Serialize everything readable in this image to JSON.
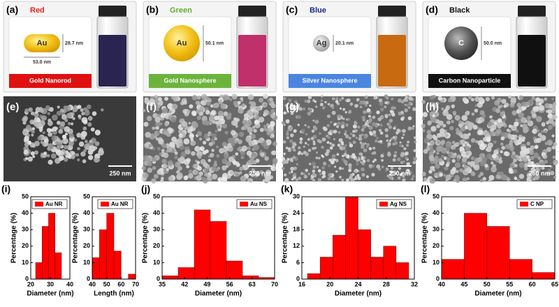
{
  "top_panels": [
    {
      "label": "(a)",
      "color_name": "Red",
      "name_color": "#e8211c",
      "particle": "Au",
      "dimensions": [
        "28.7 nm",
        "53.0 nm"
      ],
      "caption": "Gold Nanorod",
      "caption_color": "#e01010",
      "liquid_color": "#2a2450"
    },
    {
      "label": "(b)",
      "color_name": "Green",
      "name_color": "#5cb030",
      "particle": "Au",
      "dimensions": [
        "50.1 nm"
      ],
      "caption": "Gold Nanosphere",
      "caption_color": "#6cb33c",
      "liquid_color": "#c0306a"
    },
    {
      "label": "(c)",
      "color_name": "Blue",
      "name_color": "#1a2a8a",
      "particle": "Ag",
      "dimensions": [
        "20.1 nm"
      ],
      "caption": "Silver Nanosphere",
      "caption_color": "#4a86e0",
      "liquid_color": "#c86a10"
    },
    {
      "label": "(d)",
      "color_name": "Black",
      "name_color": "#111111",
      "particle": "C",
      "dimensions": [
        "50.0 nm"
      ],
      "caption": "Carbon Nanoparticle",
      "caption_color": "#111111",
      "liquid_color": "#101010"
    }
  ],
  "sem_panels": [
    {
      "label": "(e)",
      "scale": "250 nm"
    },
    {
      "label": "(f)",
      "scale": "250 nm"
    },
    {
      "label": "(g)",
      "scale": "250 nm"
    },
    {
      "label": "(h)",
      "scale": "250 nm"
    }
  ],
  "chart_data": [
    {
      "type": "histogram",
      "label": "(i)",
      "legend": "Au NR",
      "color": "#ff0000",
      "bins": [
        22.5,
        25.8,
        29.1,
        32.4,
        35.7
      ],
      "values": [
        10,
        32,
        40,
        16
      ],
      "xlim": [
        20,
        40
      ],
      "xticks": [
        20,
        30,
        40
      ],
      "ylim": [
        0,
        50
      ],
      "yticks": [
        0,
        10,
        20,
        30,
        40,
        50
      ],
      "xlabel": "Diameter (nm)",
      "ylabel": "Percentage (%)"
    },
    {
      "type": "histogram",
      "legend": "Au NR",
      "color": "#ff0000",
      "bins": [
        40,
        45,
        50,
        55,
        60,
        65,
        70
      ],
      "values": [
        13,
        30,
        40,
        17,
        0,
        3
      ],
      "xlim": [
        40,
        70
      ],
      "xticks": [
        40,
        50,
        60,
        70
      ],
      "ylim": [
        0,
        50
      ],
      "yticks": [
        0,
        10,
        20,
        30,
        40,
        50
      ],
      "xlabel": "Length (nm)",
      "ylabel": "Percentage (%)"
    },
    {
      "type": "histogram",
      "label": "(j)",
      "legend": "Au NS",
      "color": "#ff0000",
      "bins": [
        35,
        40,
        45,
        50,
        55,
        60,
        65,
        70
      ],
      "values": [
        2,
        7,
        42,
        35,
        11,
        2,
        1
      ],
      "xlim": [
        35,
        70
      ],
      "xticks": [
        35,
        42,
        49,
        56,
        63,
        70
      ],
      "ylim": [
        0,
        50
      ],
      "yticks": [
        0,
        10,
        20,
        30,
        40,
        50
      ],
      "xlabel": "Diameter (nm)",
      "ylabel": "Percentage (%)"
    },
    {
      "type": "histogram",
      "label": "(k)",
      "legend": "Ag NS",
      "color": "#ff0000",
      "bins": [
        16.8,
        18.6,
        20.4,
        22.2,
        24,
        25.8,
        27.6,
        29.4,
        31.2
      ],
      "values": [
        2,
        8,
        16,
        30,
        18,
        8,
        12,
        6
      ],
      "xlim": [
        16,
        32
      ],
      "xticks": [
        16,
        20,
        24,
        28,
        32
      ],
      "ylim": [
        0,
        30
      ],
      "yticks": [
        0,
        6,
        12,
        18,
        24,
        30
      ],
      "xlabel": "Diameter (nm)",
      "ylabel": "Percentage (%)"
    },
    {
      "type": "histogram",
      "label": "(l)",
      "legend": "C NP",
      "color": "#ff0000",
      "bins": [
        40,
        45,
        50,
        55,
        60,
        65
      ],
      "values": [
        12,
        40,
        32,
        12,
        4
      ],
      "xlim": [
        40,
        65
      ],
      "xticks": [
        40,
        45,
        50,
        55,
        60,
        65
      ],
      "ylim": [
        0,
        50
      ],
      "yticks": [
        0,
        10,
        20,
        30,
        40,
        50
      ],
      "xlabel": "Diameter (nm)",
      "ylabel": "Percentage (%)"
    }
  ]
}
